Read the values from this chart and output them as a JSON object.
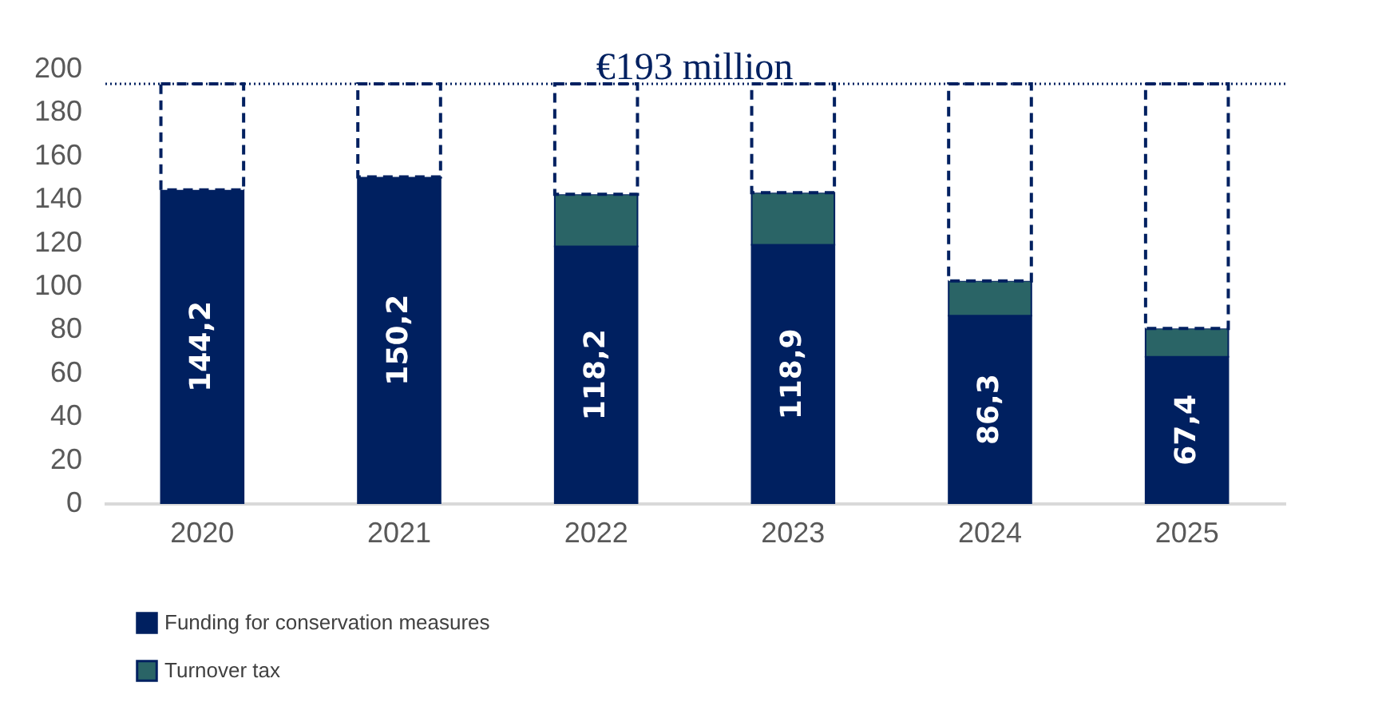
{
  "chart_data": {
    "type": "bar",
    "stacked": true,
    "categories": [
      "2020",
      "2021",
      "2022",
      "2023",
      "2024",
      "2025"
    ],
    "series": [
      {
        "name": "Funding for conservation measures",
        "color": "#002060",
        "values": [
          144.2,
          150.2,
          118.2,
          118.9,
          86.3,
          67.4
        ],
        "value_labels": [
          "144,2",
          "150,2",
          "118,2",
          "118,9",
          "86,3",
          "67,4"
        ]
      },
      {
        "name": "Turnover tax",
        "color": "#2a6466",
        "values": [
          0,
          0,
          24,
          24,
          16,
          13
        ]
      },
      {
        "color": "#ffffff",
        "values": [
          48.8,
          42.8,
          50.8,
          50.1,
          90.7,
          112.6
        ]
      }
    ],
    "ref_lines": [
      {
        "axis": "y",
        "value": 193,
        "label": "€193 million",
        "color": "#002060",
        "line_style": "dotted"
      }
    ],
    "ylim": [
      0,
      200
    ],
    "yticks": [
      0,
      20,
      40,
      60,
      80,
      100,
      120,
      140,
      160,
      180,
      200
    ],
    "grid": false,
    "legend": "bottom left"
  }
}
